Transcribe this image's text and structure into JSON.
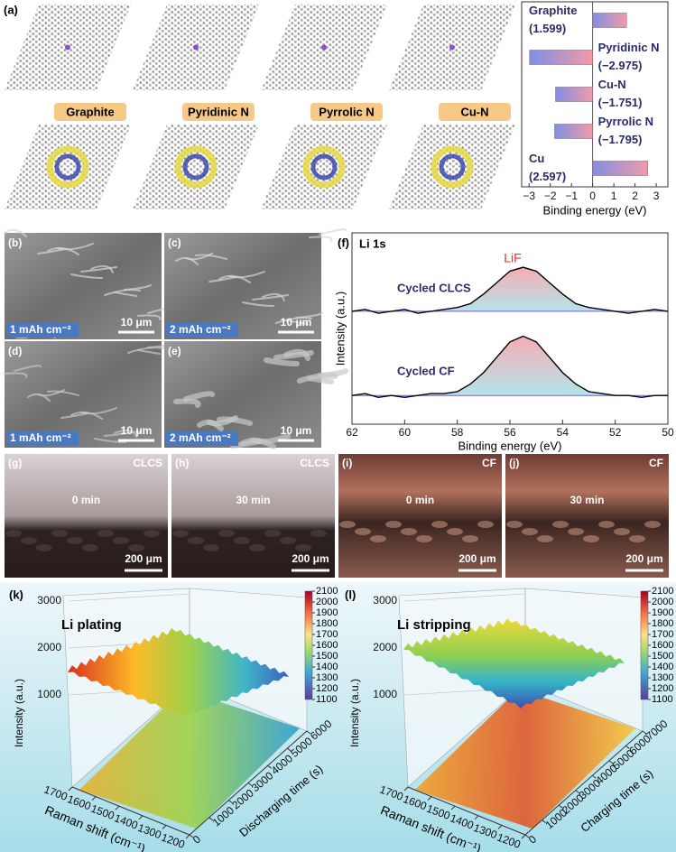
{
  "panel_a": {
    "label": "(a)",
    "structures": [
      "Graphite",
      "Pyridinic N",
      "Pyrrolic N",
      "Cu-N"
    ]
  },
  "sem": [
    {
      "label": "(b)",
      "capacity": "1 mAh cm⁻²",
      "scale": "10 μm"
    },
    {
      "label": "(c)",
      "capacity": "2 mAh cm⁻²",
      "scale": "10 μm"
    },
    {
      "label": "(d)",
      "capacity": "1 mAh cm⁻²",
      "scale": "10 μm"
    },
    {
      "label": "(e)",
      "capacity": "2 mAh cm⁻²",
      "scale": "10 μm"
    }
  ],
  "optical": [
    {
      "label": "(g)",
      "sample": "CLCS",
      "time": "0 min",
      "scale": "200 μm"
    },
    {
      "label": "(h)",
      "sample": "CLCS",
      "time": "30 min",
      "scale": "200 μm"
    },
    {
      "label": "(i)",
      "sample": "CF",
      "time": "0 min",
      "scale": "200 μm"
    },
    {
      "label": "(j)",
      "sample": "CF",
      "time": "30 min",
      "scale": "200 μm"
    }
  ],
  "chart_data": [
    {
      "type": "hbar",
      "xlabel": "Binding energy (eV)",
      "categories": [
        "Graphite",
        "Pyridinic N",
        "Cu-N",
        "Pyrrolic N",
        "Cu"
      ],
      "values": [
        1.599,
        -2.975,
        -1.751,
        -1.795,
        2.597
      ],
      "value_labels": [
        "(1.599)",
        "(−2.975)",
        "(−1.751)",
        "(−1.795)",
        "(2.597)"
      ],
      "xlim": [
        -3.35,
        3.55
      ],
      "xticks": [
        {
          "value": -3,
          "label": "−3"
        },
        {
          "value": -2,
          "label": "−2"
        },
        {
          "value": -1,
          "label": "−1"
        },
        0,
        1,
        2,
        3
      ]
    },
    {
      "type": "line",
      "label": "(f)",
      "title": "Li 1s",
      "annotation": "LiF",
      "xlabel": "Binding energy (eV)",
      "ylabel": "Intensity (a.u.)",
      "x": [
        62,
        61.5,
        61,
        60.5,
        60,
        59.5,
        59,
        58.5,
        58,
        57.5,
        57,
        56.5,
        56,
        55.5,
        55,
        54.5,
        54,
        53.5,
        53,
        52.5,
        52,
        51.5,
        51,
        50.5,
        50
      ],
      "xlim": [
        62,
        50
      ],
      "xticks": [
        62,
        60,
        58,
        56,
        54,
        52,
        50
      ],
      "ylim": [
        0,
        10
      ],
      "series": [
        {
          "name": "Cycled CLCS",
          "color": "#000000",
          "values": [
            5.9,
            6.0,
            5.8,
            5.9,
            6.0,
            5.8,
            5.9,
            6.0,
            6.1,
            6.3,
            6.8,
            7.4,
            8.0,
            8.2,
            8.0,
            7.4,
            6.8,
            6.3,
            6.1,
            6.0,
            5.9,
            5.8,
            5.9,
            6.0,
            5.9
          ]
        },
        {
          "name": "Cycled CF",
          "color": "#000000",
          "values": [
            1.5,
            1.6,
            1.4,
            1.5,
            1.4,
            1.5,
            1.6,
            1.6,
            1.7,
            2.1,
            2.7,
            3.5,
            4.3,
            4.6,
            4.3,
            3.5,
            2.7,
            2.1,
            1.7,
            1.6,
            1.5,
            1.5,
            1.4,
            1.5,
            1.5
          ]
        }
      ]
    },
    {
      "type": "surface",
      "label": "(k)",
      "title": "Li plating",
      "zlabel": "Intensity (a.u.)",
      "xlabel": "Raman shift (cm⁻¹)",
      "ylabel": "Discharging time (s)",
      "xlim": [
        1700,
        1200
      ],
      "xticks": [
        1700,
        1600,
        1500,
        1400,
        1300,
        1200
      ],
      "ylim": [
        0,
        6000
      ],
      "yticks": [
        0,
        1000,
        2000,
        3000,
        4000,
        5000,
        6000
      ],
      "zlim": [
        0,
        3000
      ],
      "zticks": [
        1000,
        2000,
        3000
      ],
      "clim": [
        1100,
        2100
      ],
      "cticks": [
        1100,
        1200,
        1300,
        1400,
        1500,
        1600,
        1700,
        1800,
        1900,
        2000,
        2100
      ]
    },
    {
      "type": "surface",
      "label": "(l)",
      "title": "Li stripping",
      "zlabel": "Intensity (a.u.)",
      "xlabel": "Raman shift (cm⁻¹)",
      "ylabel": "Charging time (s)",
      "xlim": [
        1700,
        1200
      ],
      "xticks": [
        1700,
        1600,
        1500,
        1400,
        1300,
        1200
      ],
      "ylim": [
        0,
        7000
      ],
      "yticks": [
        0,
        1000,
        2000,
        3000,
        4000,
        5000,
        6000,
        7000
      ],
      "zlim": [
        0,
        3000
      ],
      "zticks": [
        1000,
        2000,
        3000
      ],
      "clim": [
        1100,
        2100
      ],
      "cticks": [
        1100,
        1200,
        1300,
        1400,
        1500,
        1600,
        1700,
        1800,
        1900,
        2000,
        2100
      ]
    }
  ]
}
